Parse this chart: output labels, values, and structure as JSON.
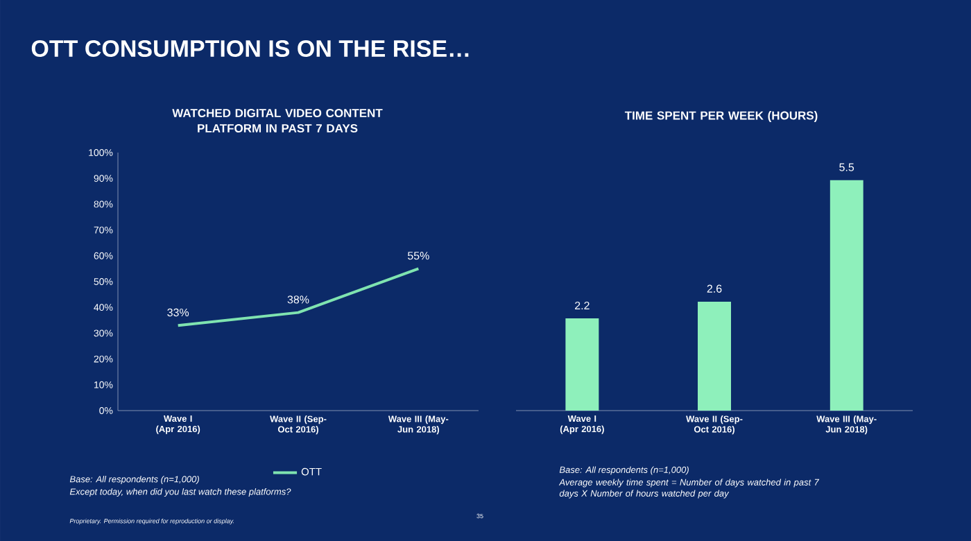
{
  "chart_data": [
    {
      "type": "line",
      "title": "WATCHED DIGITAL VIDEO CONTENT PLATFORM IN PAST 7 DAYS",
      "categories": [
        "Wave I (Apr 2016)",
        "Wave II (Sep-Oct 2016)",
        "Wave III (May-Jun 2018)"
      ],
      "series": [
        {
          "name": "OTT",
          "color": "#7fe3b0",
          "values": [
            33,
            38,
            55
          ],
          "value_labels": [
            "33%",
            "38%",
            "55%"
          ]
        }
      ],
      "ylim": [
        0,
        100
      ],
      "yticks": [
        {
          "value": 0,
          "label": "0%"
        },
        {
          "value": 10,
          "label": "10%"
        },
        {
          "value": 20,
          "label": "20%"
        },
        {
          "value": 30,
          "label": "30%"
        },
        {
          "value": 40,
          "label": "40%"
        },
        {
          "value": 50,
          "label": "50%"
        },
        {
          "value": 60,
          "label": "60%"
        },
        {
          "value": 70,
          "label": "70%"
        },
        {
          "value": 80,
          "label": "80%"
        },
        {
          "value": 90,
          "label": "90%"
        },
        {
          "value": 100,
          "label": "100%"
        }
      ],
      "legend": "bottom",
      "marker": "none",
      "line_style": "solid",
      "grid": false,
      "annotations": [
        "OTT CONSUMPTION IS ON THE RISE…",
        "Base: All respondents (n=1,000)",
        "Except today, when did you last watch these platforms?",
        "Proprietary. Permission required for reproduction or display.",
        "35"
      ]
    },
    {
      "type": "bar",
      "title": "TIME SPENT PER WEEK (HOURS)",
      "categories": [
        "Wave I (Apr 2016)",
        "Wave II (Sep-Oct 2016)",
        "Wave III (May-Jun 2018)"
      ],
      "values": [
        2.2,
        2.6,
        5.5
      ],
      "color": "#8ef0bb",
      "data_labels": true,
      "annotations": [
        "Base: All respondents (n=1,000)",
        "Average weekly time spent = Number of days watched in past 7 days X Number of hours watched per day"
      ]
    }
  ]
}
